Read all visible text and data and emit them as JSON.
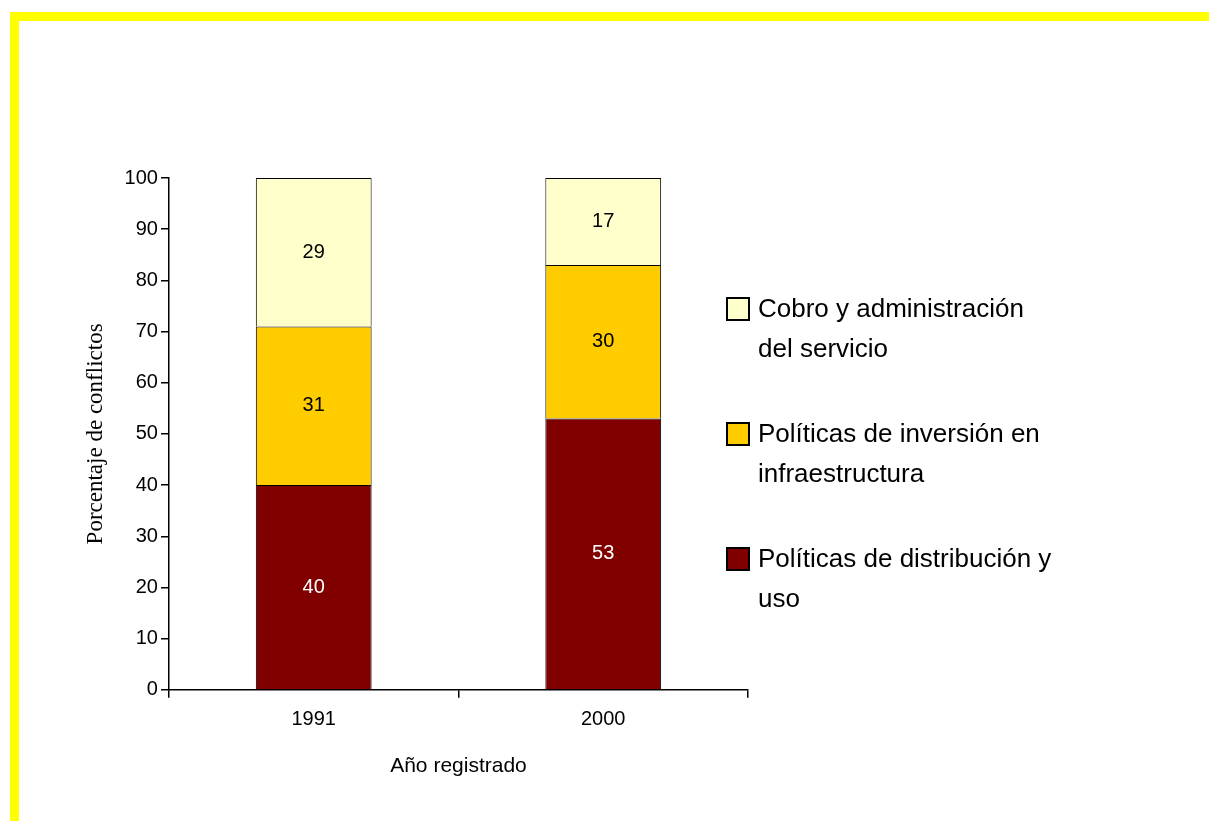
{
  "chart_data": {
    "type": "bar",
    "stacked": true,
    "xlabel": "Año registrado",
    "ylabel": "Porcentaje de conflictos",
    "categories": [
      "1991",
      "2000"
    ],
    "series": [
      {
        "name": "Políticas de distribución y uso",
        "color": "#800000",
        "values": [
          40,
          53
        ]
      },
      {
        "name": "Políticas de inversión en infraestructura",
        "color": "#ffcc00",
        "values": [
          31,
          30
        ]
      },
      {
        "name": "Cobro y administración del servicio",
        "color": "#ffffcc",
        "values": [
          29,
          17
        ]
      }
    ],
    "ylim": [
      0,
      100
    ],
    "yticks": [
      0,
      10,
      20,
      30,
      40,
      50,
      60,
      70,
      80,
      90,
      100
    ],
    "grid": false,
    "legend": "right",
    "data_labels": true
  }
}
